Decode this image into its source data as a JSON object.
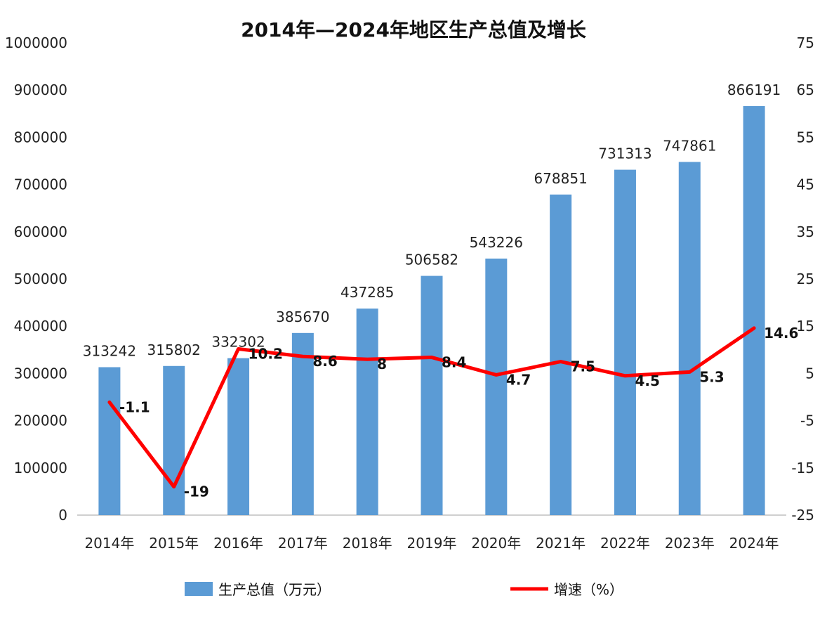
{
  "chart_data": {
    "type": "bar",
    "title": "2014年—2024年地区生产总值及增长",
    "categories": [
      "2014年",
      "2015年",
      "2016年",
      "2017年",
      "2018年",
      "2019年",
      "2020年",
      "2021年",
      "2022年",
      "2023年",
      "2024年"
    ],
    "series": [
      {
        "name": "生产总值（万元）",
        "type": "bar",
        "axis": "left",
        "color": "#5b9bd5",
        "values": [
          313242,
          315802,
          332302,
          385670,
          437285,
          506582,
          543226,
          678851,
          731313,
          747861,
          866191
        ]
      },
      {
        "name": "增速（%）",
        "type": "line",
        "axis": "right",
        "color": "#ff0000",
        "values": [
          -1.1,
          -19,
          10.2,
          8.6,
          8,
          8.4,
          4.7,
          7.5,
          4.5,
          5.3,
          14.6
        ]
      }
    ],
    "left_axis": {
      "ylim": [
        0,
        1000000
      ],
      "ticks": [
        "0",
        "100000",
        "200000",
        "300000",
        "400000",
        "500000",
        "600000",
        "700000",
        "800000",
        "900000",
        "1000000"
      ]
    },
    "right_axis": {
      "ylim": [
        -25,
        75
      ],
      "ticks": [
        "-25",
        "-15",
        "-5",
        "5",
        "15",
        "25",
        "35",
        "45",
        "55",
        "65",
        "75"
      ]
    },
    "grid": false,
    "legend": "bottom"
  }
}
